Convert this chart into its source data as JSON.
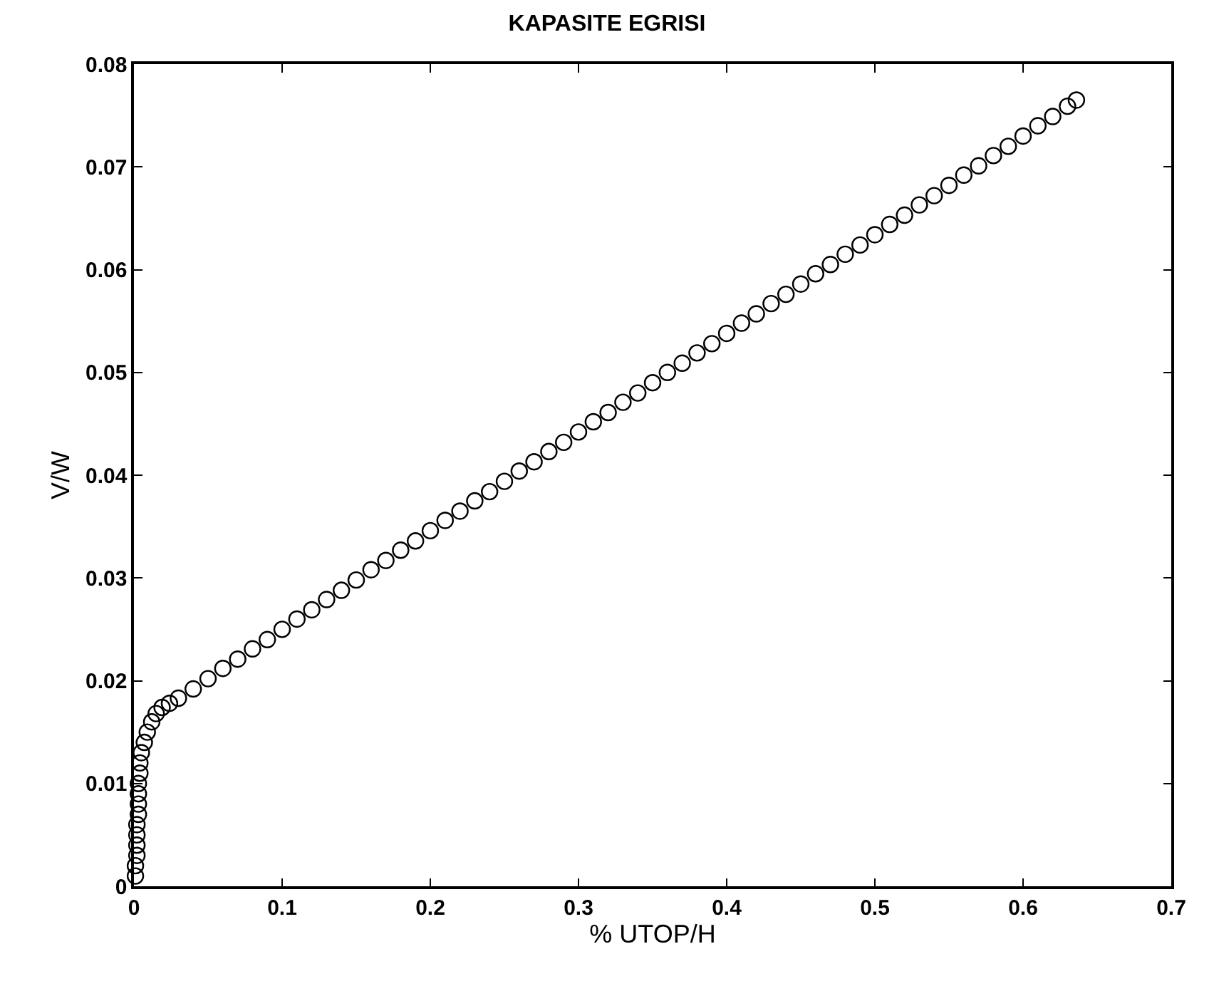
{
  "chart_data": {
    "type": "scatter",
    "title": "KAPASITE EGRISI",
    "xlabel": "% UTOP/H",
    "ylabel": "V/W",
    "xlim": [
      0,
      0.7
    ],
    "xticks": [
      0,
      0.1,
      0.2,
      0.3,
      0.4,
      0.5,
      0.6,
      0.7
    ],
    "ylim": [
      0,
      0.08
    ],
    "yticks": [
      0,
      0.01,
      0.02,
      0.03,
      0.04,
      0.05,
      0.06,
      0.07,
      0.08
    ],
    "marker": "circle",
    "series": [
      {
        "color": "#000000",
        "x": [
          0.001,
          0.001,
          0.002,
          0.002,
          0.002,
          0.002,
          0.003,
          0.003,
          0.003,
          0.003,
          0.004,
          0.004,
          0.005,
          0.007,
          0.009,
          0.012,
          0.015,
          0.019,
          0.024,
          0.03,
          0.04,
          0.05,
          0.06,
          0.07,
          0.08,
          0.09,
          0.1,
          0.11,
          0.12,
          0.13,
          0.14,
          0.15,
          0.16,
          0.17,
          0.18,
          0.19,
          0.2,
          0.21,
          0.22,
          0.23,
          0.24,
          0.25,
          0.26,
          0.27,
          0.28,
          0.29,
          0.3,
          0.31,
          0.32,
          0.33,
          0.34,
          0.35,
          0.36,
          0.37,
          0.38,
          0.39,
          0.4,
          0.41,
          0.42,
          0.43,
          0.44,
          0.45,
          0.46,
          0.47,
          0.48,
          0.49,
          0.5,
          0.51,
          0.52,
          0.53,
          0.54,
          0.55,
          0.56,
          0.57,
          0.58,
          0.59,
          0.6,
          0.61,
          0.62,
          0.63,
          0.636
        ],
        "values": [
          0.001,
          0.002,
          0.003,
          0.004,
          0.005,
          0.006,
          0.007,
          0.008,
          0.009,
          0.01,
          0.011,
          0.012,
          0.013,
          0.014,
          0.015,
          0.016,
          0.0168,
          0.0174,
          0.0178,
          0.0183,
          0.0192,
          0.0202,
          0.0212,
          0.0221,
          0.0231,
          0.024,
          0.025,
          0.026,
          0.0269,
          0.0279,
          0.0288,
          0.0298,
          0.0308,
          0.0317,
          0.0327,
          0.0336,
          0.0346,
          0.0356,
          0.0365,
          0.0375,
          0.0384,
          0.0394,
          0.0404,
          0.0413,
          0.0423,
          0.0432,
          0.0442,
          0.0452,
          0.0461,
          0.0471,
          0.048,
          0.049,
          0.05,
          0.0509,
          0.0519,
          0.0528,
          0.0538,
          0.0548,
          0.0557,
          0.0567,
          0.0576,
          0.0586,
          0.0596,
          0.0605,
          0.0615,
          0.0624,
          0.0634,
          0.0644,
          0.0653,
          0.0663,
          0.0672,
          0.0682,
          0.0692,
          0.0701,
          0.0711,
          0.072,
          0.073,
          0.074,
          0.0749,
          0.0759,
          0.0765
        ]
      }
    ]
  }
}
